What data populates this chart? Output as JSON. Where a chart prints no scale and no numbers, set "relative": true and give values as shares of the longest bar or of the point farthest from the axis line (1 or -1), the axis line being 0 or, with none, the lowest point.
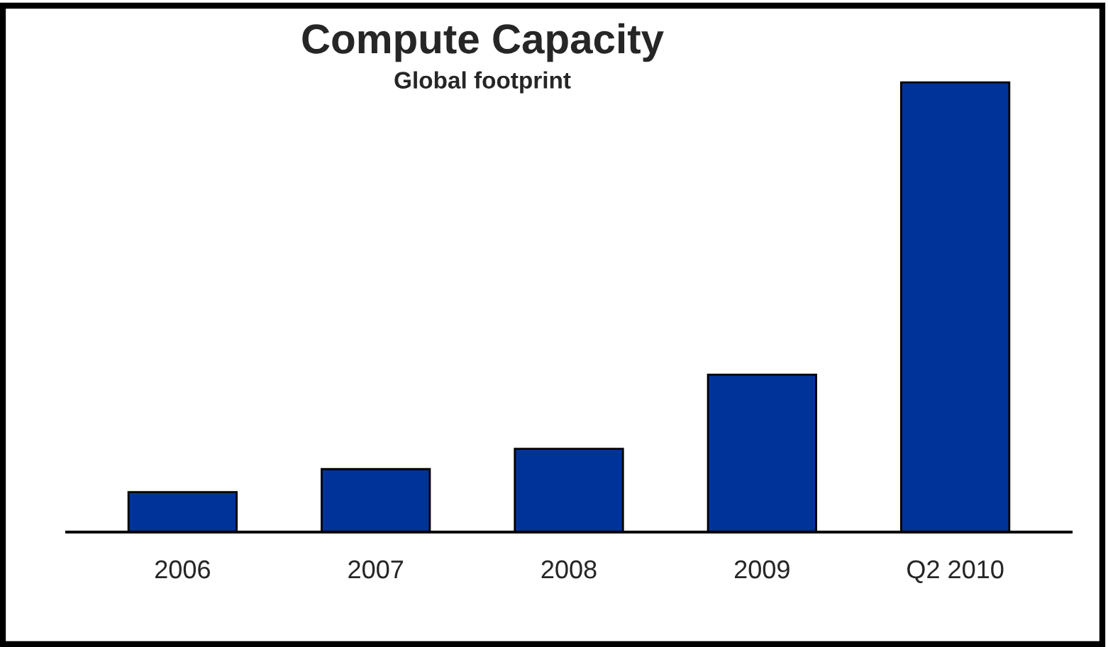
{
  "chart_data": {
    "type": "bar",
    "title": "Compute Capacity",
    "subtitle": "Global footprint",
    "categories": [
      "2006",
      "2007",
      "2008",
      "2009",
      "Q2 2010"
    ],
    "values": [
      0.089,
      0.14,
      0.185,
      0.35,
      1
    ],
    "color": "#003399",
    "relative": true,
    "grid": false,
    "legend": false
  }
}
